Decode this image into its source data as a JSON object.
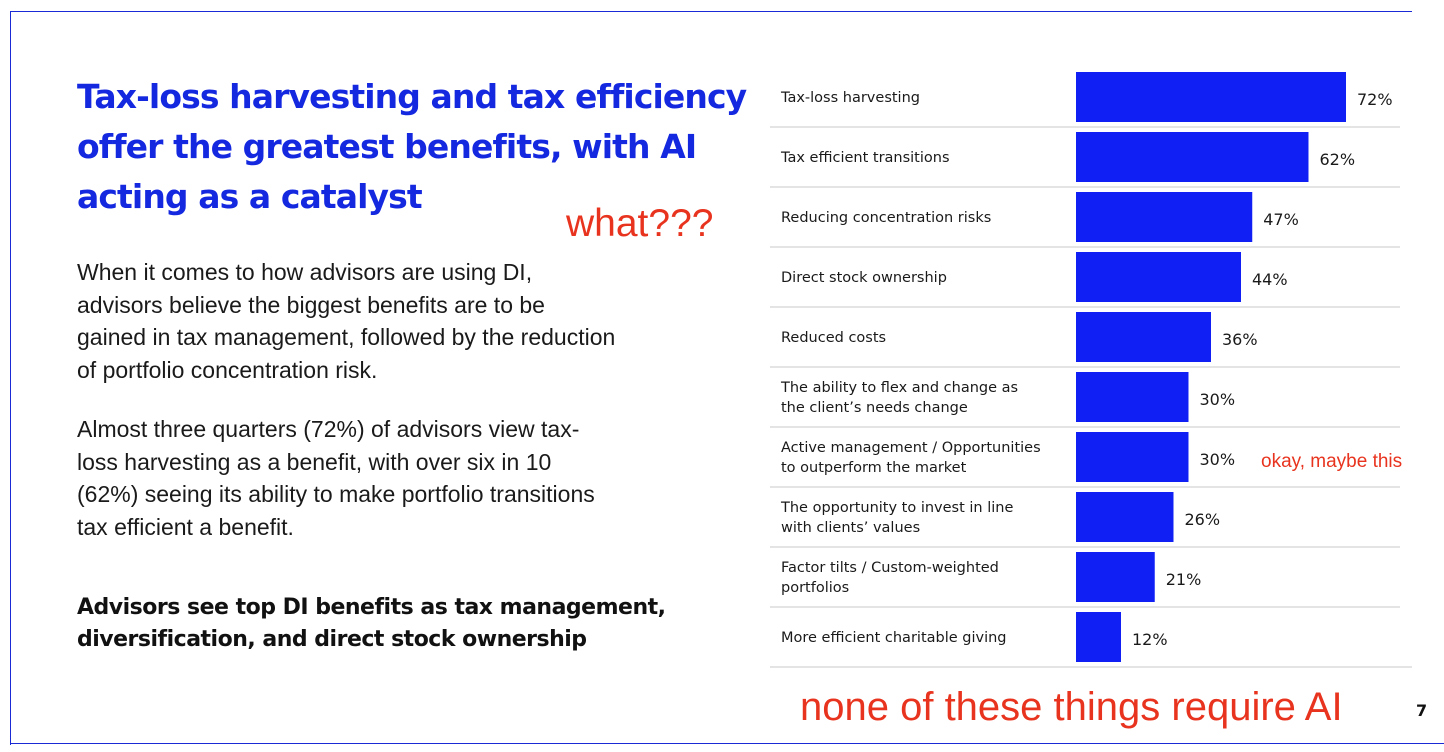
{
  "slide": {
    "headline": "Tax-loss harvesting and tax efficiency offer the greatest benefits, with AI acting as a catalyst",
    "paragraph_1": "When it comes to how advisors are using DI, advisors believe the biggest benefits are to be gained in tax management, followed by the reduction of portfolio concentration risk.",
    "paragraph_2": "Almost three quarters (72%) of advisors view tax-loss harvesting as a benefit, with over six in 10 (62%) seeing its ability to make portfolio transitions tax efficient a benefit.",
    "subheading": "Advisors see top DI benefits as tax management, diversification, and direct stock ownership",
    "page_number": "7"
  },
  "annotations": {
    "what": "what???",
    "maybe": "okay, maybe this",
    "none": "none of these things require AI"
  },
  "colors": {
    "brand_blue": "#1428e0",
    "bar_blue": "#1020f5",
    "annotation_red": "#e8341f"
  },
  "chart_data": {
    "type": "bar",
    "orientation": "horizontal",
    "unit": "%",
    "xlim": [
      0,
      100
    ],
    "grid": false,
    "categories": [
      [
        "Tax-loss harvesting"
      ],
      [
        "Tax efficient transitions"
      ],
      [
        "Reducing concentration risks"
      ],
      [
        "Direct stock ownership"
      ],
      [
        "Reduced costs"
      ],
      [
        "The ability to flex and change as",
        "the client’s needs change"
      ],
      [
        "Active management / Opportunities",
        "to outperform the market"
      ],
      [
        "The opportunity to invest in line",
        "with clients’ values"
      ],
      [
        "Factor tilts / Custom-weighted",
        "portfolios"
      ],
      [
        "More efficient charitable giving"
      ]
    ],
    "values": [
      72,
      62,
      47,
      44,
      36,
      30,
      30,
      26,
      21,
      12
    ],
    "value_labels": [
      "72%",
      "62%",
      "47%",
      "44%",
      "36%",
      "30%",
      "30%",
      "26%",
      "21%",
      "12%"
    ]
  }
}
